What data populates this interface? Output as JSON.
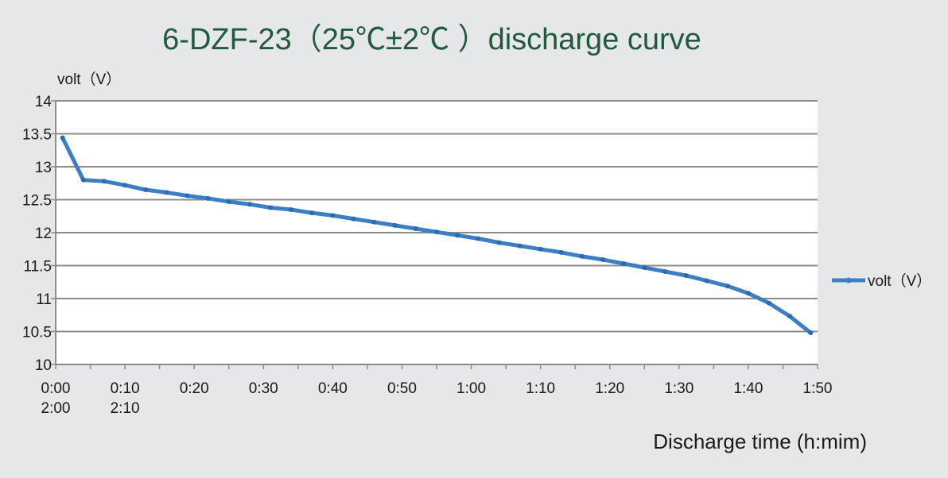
{
  "chart_data": {
    "type": "line",
    "title": "6-DZF-23（25℃±2℃ ）discharge curve",
    "ylabel": "volt（V）",
    "xlabel": "Discharge time (h:mim)",
    "ylim": [
      10,
      14
    ],
    "yticks": [
      "10",
      "10.5",
      "11",
      "11.5",
      "12",
      "12.5",
      "13",
      "13.5",
      "14"
    ],
    "xlim": [
      0,
      110
    ],
    "xticks": [
      {
        "x": 0,
        "label": "0:00",
        "sub": "2:00"
      },
      {
        "x": 10,
        "label": "0:10",
        "sub": "2:10"
      },
      {
        "x": 20,
        "label": "0:20",
        "sub": ""
      },
      {
        "x": 30,
        "label": "0:30",
        "sub": ""
      },
      {
        "x": 40,
        "label": "0:40",
        "sub": ""
      },
      {
        "x": 50,
        "label": "0:50",
        "sub": ""
      },
      {
        "x": 60,
        "label": "1:00",
        "sub": ""
      },
      {
        "x": 70,
        "label": "1:10",
        "sub": ""
      },
      {
        "x": 80,
        "label": "1:20",
        "sub": ""
      },
      {
        "x": 90,
        "label": "1:30",
        "sub": ""
      },
      {
        "x": 100,
        "label": "1:40",
        "sub": ""
      },
      {
        "x": 110,
        "label": "1:50",
        "sub": ""
      }
    ],
    "grid": true,
    "legend_position": "right",
    "series": [
      {
        "name": "volt（V）",
        "color": "#3d7fc4",
        "x": [
          1,
          4,
          7,
          10,
          13,
          16,
          19,
          22,
          25,
          28,
          31,
          34,
          37,
          40,
          43,
          46,
          49,
          52,
          55,
          58,
          61,
          64,
          67,
          70,
          73,
          76,
          79,
          82,
          85,
          88,
          91,
          94,
          97,
          100,
          103,
          106,
          109
        ],
        "values": [
          13.44,
          12.8,
          12.78,
          12.72,
          12.65,
          12.61,
          12.56,
          12.52,
          12.47,
          12.43,
          12.38,
          12.35,
          12.3,
          12.26,
          12.21,
          12.16,
          12.11,
          12.06,
          12.01,
          11.96,
          11.91,
          11.85,
          11.8,
          11.75,
          11.7,
          11.64,
          11.59,
          11.53,
          11.47,
          11.41,
          11.35,
          11.27,
          11.19,
          11.08,
          10.93,
          10.73,
          10.48
        ]
      }
    ]
  }
}
